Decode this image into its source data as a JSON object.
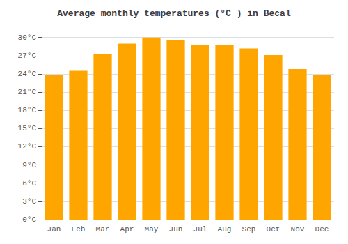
{
  "chart_data": {
    "type": "bar",
    "title": "Average monthly temperatures (°C ) in Becal",
    "categories": [
      "Jan",
      "Feb",
      "Mar",
      "Apr",
      "May",
      "Jun",
      "Jul",
      "Aug",
      "Sep",
      "Oct",
      "Nov",
      "Dec"
    ],
    "values": [
      23.8,
      24.5,
      27.2,
      29.0,
      30.0,
      29.5,
      28.8,
      28.8,
      28.2,
      27.1,
      24.8,
      23.8
    ],
    "color": "#FFA500",
    "ylim": [
      0,
      31
    ],
    "yticks": [
      {
        "value": 0,
        "label": "0°C"
      },
      {
        "value": 3,
        "label": "3°C"
      },
      {
        "value": 6,
        "label": "6°C"
      },
      {
        "value": 9,
        "label": "9°C"
      },
      {
        "value": 12,
        "label": "12°C"
      },
      {
        "value": 15,
        "label": "15°C"
      },
      {
        "value": 18,
        "label": "18°C"
      },
      {
        "value": 21,
        "label": "21°C"
      },
      {
        "value": 24,
        "label": "24°C"
      },
      {
        "value": 27,
        "label": "27°C"
      },
      {
        "value": 30,
        "label": "30°C"
      }
    ],
    "grid": true
  }
}
